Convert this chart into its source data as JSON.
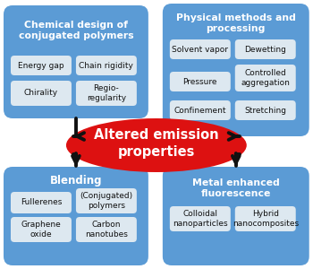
{
  "background_color": "#ffffff",
  "blue_box_color": "#5b9bd5",
  "inner_box_color": "#dde8f0",
  "red_ellipse_color": "#dd1111",
  "arrow_color": "#111111",
  "white_text": "#ffffff",
  "dark_text": "#111111",
  "top_left_title": "Chemical design of\nconjugated polymers",
  "top_left_items": [
    [
      "Energy gap",
      "Chain rigidity"
    ],
    [
      "Chirality",
      "Regio-\nregularity"
    ]
  ],
  "top_right_title": "Physical methods and\nprocessing",
  "top_right_items": [
    [
      "Solvent vapor",
      "Dewetting"
    ],
    [
      "Pressure",
      "Controlled\naggregation"
    ],
    [
      "Confinement",
      "Stretching"
    ]
  ],
  "center_text": "Altered emission\nproperties",
  "bottom_left_title": "Blending",
  "bottom_left_items": [
    [
      "Fullerenes",
      "(Conjugated)\npolymers"
    ],
    [
      "Graphene\noxide",
      "Carbon\nnanotubes"
    ]
  ],
  "bottom_right_title": "Metal enhanced\nfluorescence",
  "bottom_right_items": [
    [
      "Colloidal\nnanoparticles",
      "Hybrid\nnanocomposites"
    ]
  ]
}
